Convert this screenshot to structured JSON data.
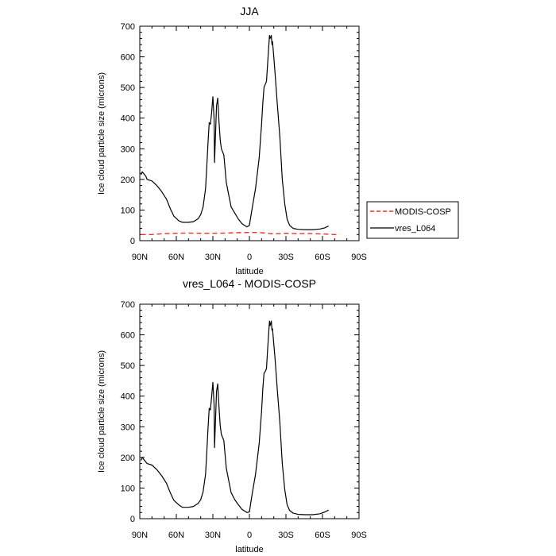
{
  "chart_data": [
    {
      "type": "line",
      "title": "JJA",
      "xlabel": "latitude",
      "ylabel": "Ice cloud particle size (microns)",
      "xlim": [
        90,
        -90
      ],
      "ylim": [
        0,
        700
      ],
      "x_ticks": [
        {
          "value": 90,
          "label": "90N"
        },
        {
          "value": 60,
          "label": "60N"
        },
        {
          "value": 30,
          "label": "30N"
        },
        {
          "value": 0,
          "label": "0"
        },
        {
          "value": -30,
          "label": "30S"
        },
        {
          "value": -60,
          "label": "60S"
        },
        {
          "value": -90,
          "label": "90S"
        }
      ],
      "y_ticks": [
        0,
        100,
        200,
        300,
        400,
        500,
        600,
        700
      ],
      "legend": {
        "placement": "right"
      },
      "series": [
        {
          "name": "MODIS-COSP",
          "color": "#e8312f",
          "dash": true,
          "points": [
            [
              89,
              20
            ],
            [
              80,
              20
            ],
            [
              70,
              23
            ],
            [
              60,
              24
            ],
            [
              50,
              25
            ],
            [
              40,
              24
            ],
            [
              30,
              24
            ],
            [
              20,
              25
            ],
            [
              10,
              26
            ],
            [
              0,
              27
            ],
            [
              -10,
              26
            ],
            [
              -20,
              22
            ],
            [
              -30,
              24
            ],
            [
              -40,
              23
            ],
            [
              -50,
              23
            ],
            [
              -60,
              22
            ],
            [
              -70,
              20
            ],
            [
              -74,
              20
            ]
          ]
        },
        {
          "name": "vres_L064",
          "color": "#000000",
          "dash": false,
          "points": [
            [
              89,
              215
            ],
            [
              88,
              225
            ],
            [
              85,
              210
            ],
            [
              84,
              200
            ],
            [
              80,
              195
            ],
            [
              76,
              180
            ],
            [
              72,
              160
            ],
            [
              68,
              135
            ],
            [
              65,
              105
            ],
            [
              62,
              80
            ],
            [
              58,
              65
            ],
            [
              55,
              60
            ],
            [
              50,
              60
            ],
            [
              46,
              62
            ],
            [
              42,
              72
            ],
            [
              40,
              85
            ],
            [
              38,
              110
            ],
            [
              36,
              170
            ],
            [
              35,
              240
            ],
            [
              34,
              320
            ],
            [
              33,
              385
            ],
            [
              32,
              380
            ],
            [
              31,
              420
            ],
            [
              30,
              470
            ],
            [
              29,
              400
            ],
            [
              28.6,
              255
            ],
            [
              28,
              330
            ],
            [
              27,
              440
            ],
            [
              26,
              465
            ],
            [
              25,
              390
            ],
            [
              24,
              330
            ],
            [
              23,
              300
            ],
            [
              21,
              280
            ],
            [
              19,
              190
            ],
            [
              17,
              150
            ],
            [
              15,
              110
            ],
            [
              12,
              90
            ],
            [
              9,
              70
            ],
            [
              6,
              55
            ],
            [
              2,
              45
            ],
            [
              0,
              50
            ],
            [
              -2,
              100
            ],
            [
              -5,
              170
            ],
            [
              -8,
              270
            ],
            [
              -10,
              380
            ],
            [
              -11,
              450
            ],
            [
              -12,
              500
            ],
            [
              -13,
              510
            ],
            [
              -14,
              520
            ],
            [
              -15,
              580
            ],
            [
              -16,
              640
            ],
            [
              -16.5,
              670
            ],
            [
              -17,
              660
            ],
            [
              -18,
              670
            ],
            [
              -18.5,
              640
            ],
            [
              -19,
              650
            ],
            [
              -20,
              600
            ],
            [
              -21,
              550
            ],
            [
              -23,
              440
            ],
            [
              -25,
              340
            ],
            [
              -27,
              200
            ],
            [
              -29,
              120
            ],
            [
              -31,
              70
            ],
            [
              -33,
              50
            ],
            [
              -36,
              40
            ],
            [
              -40,
              37
            ],
            [
              -46,
              36
            ],
            [
              -52,
              36
            ],
            [
              -58,
              38
            ],
            [
              -62,
              42
            ],
            [
              -65,
              48
            ]
          ]
        }
      ]
    },
    {
      "type": "line",
      "title": "vres_L064 - MODIS-COSP",
      "xlabel": "latitude",
      "ylabel": "Ice cloud particle size (microns)",
      "xlim": [
        90,
        -90
      ],
      "ylim": [
        0,
        700
      ],
      "x_ticks": [
        {
          "value": 90,
          "label": "90N"
        },
        {
          "value": 60,
          "label": "60N"
        },
        {
          "value": 30,
          "label": "30N"
        },
        {
          "value": 0,
          "label": "0"
        },
        {
          "value": -30,
          "label": "30S"
        },
        {
          "value": -60,
          "label": "60S"
        },
        {
          "value": -90,
          "label": "90S"
        }
      ],
      "y_ticks": [
        0,
        100,
        200,
        300,
        400,
        500,
        600,
        700
      ],
      "series": [
        {
          "name": "",
          "color": "#000000",
          "dash": false,
          "points": [
            [
              89,
              190
            ],
            [
              88,
              200
            ],
            [
              86,
              190
            ],
            [
              84,
              180
            ],
            [
              80,
              175
            ],
            [
              76,
              160
            ],
            [
              72,
              140
            ],
            [
              68,
              115
            ],
            [
              65,
              85
            ],
            [
              62,
              60
            ],
            [
              58,
              45
            ],
            [
              55,
              37
            ],
            [
              50,
              37
            ],
            [
              46,
              40
            ],
            [
              42,
              50
            ],
            [
              40,
              62
            ],
            [
              38,
              88
            ],
            [
              36,
              145
            ],
            [
              35,
              215
            ],
            [
              34,
              295
            ],
            [
              33,
              360
            ],
            [
              32,
              355
            ],
            [
              31,
              400
            ],
            [
              30,
              445
            ],
            [
              29,
              375
            ],
            [
              28.6,
              232
            ],
            [
              28,
              305
            ],
            [
              27,
              415
            ],
            [
              26,
              440
            ],
            [
              25,
              365
            ],
            [
              24,
              305
            ],
            [
              23,
              275
            ],
            [
              21,
              255
            ],
            [
              19,
              165
            ],
            [
              17,
              125
            ],
            [
              15,
              85
            ],
            [
              12,
              62
            ],
            [
              9,
              45
            ],
            [
              6,
              30
            ],
            [
              2,
              20
            ],
            [
              0,
              22
            ],
            [
              -2,
              75
            ],
            [
              -5,
              145
            ],
            [
              -8,
              245
            ],
            [
              -10,
              350
            ],
            [
              -11,
              425
            ],
            [
              -12,
              475
            ],
            [
              -13,
              480
            ],
            [
              -14,
              490
            ],
            [
              -15,
              555
            ],
            [
              -16,
              615
            ],
            [
              -16.5,
              645
            ],
            [
              -17,
              630
            ],
            [
              -18,
              645
            ],
            [
              -18.5,
              615
            ],
            [
              -19,
              620
            ],
            [
              -20,
              570
            ],
            [
              -21,
              525
            ],
            [
              -23,
              415
            ],
            [
              -25,
              315
            ],
            [
              -27,
              180
            ],
            [
              -29,
              95
            ],
            [
              -31,
              45
            ],
            [
              -33,
              27
            ],
            [
              -36,
              18
            ],
            [
              -40,
              14
            ],
            [
              -46,
              13
            ],
            [
              -52,
              13
            ],
            [
              -58,
              16
            ],
            [
              -62,
              22
            ],
            [
              -65,
              28
            ]
          ]
        }
      ]
    }
  ]
}
